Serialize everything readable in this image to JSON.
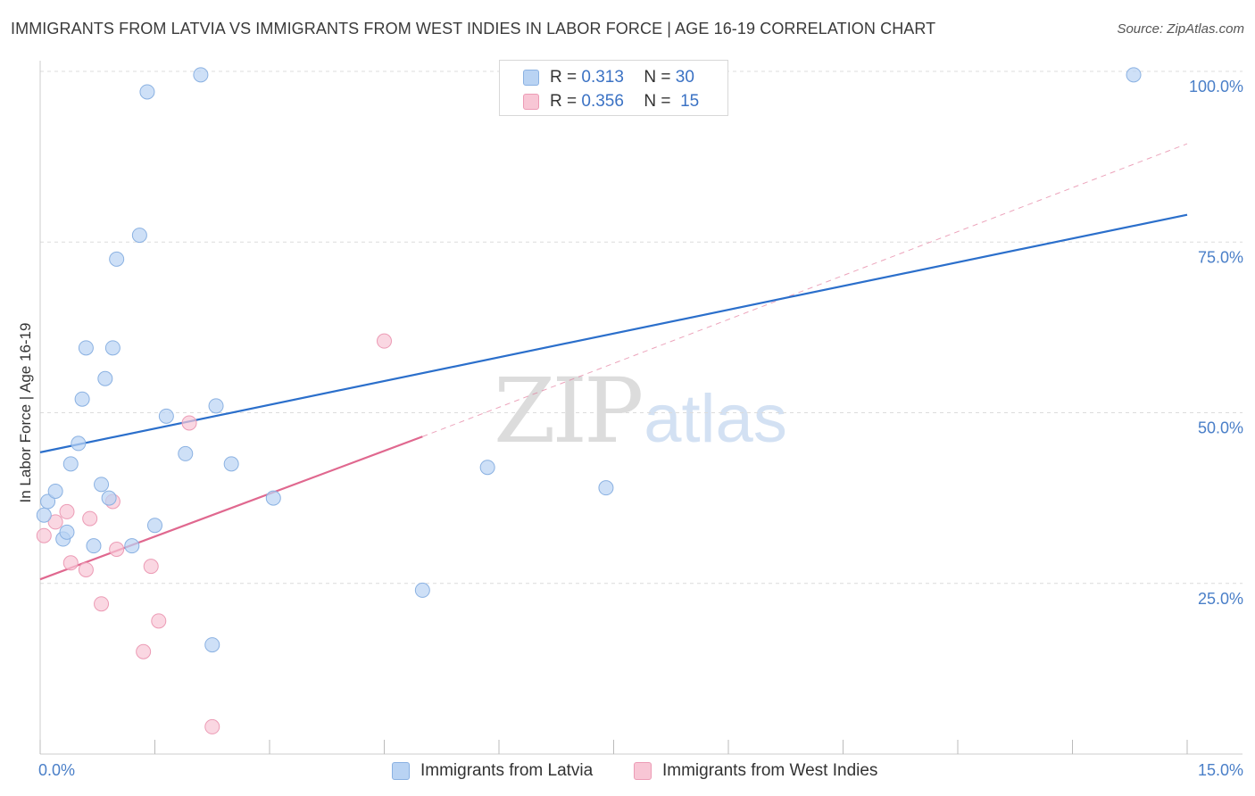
{
  "title": "IMMIGRANTS FROM LATVIA VS IMMIGRANTS FROM WEST INDIES IN LABOR FORCE | AGE 16-19 CORRELATION CHART",
  "source": "Source: ZipAtlas.com",
  "watermark": {
    "zip": "ZIP",
    "atlas": "atlas"
  },
  "legend": {
    "rows": [
      {
        "r_label": "R =",
        "r_value": "0.313",
        "n_label": "N =",
        "n_value": "30"
      },
      {
        "r_label": "R =",
        "r_value": "0.356",
        "n_label": "N =",
        "n_value": "15"
      }
    ]
  },
  "bottom_legend": {
    "latvia": "Immigrants from Latvia",
    "west_indies": "Immigrants from West Indies"
  },
  "colors": {
    "latvia_fill": "#b9d3f3",
    "latvia_stroke": "#8ab1e2",
    "latvia_line": "#2b6fcb",
    "west_fill": "#f8c6d5",
    "west_stroke": "#ec9bb5",
    "west_line": "#e0688f",
    "grid": "#dcdcdc",
    "tick_label": "#4a7fc8"
  },
  "chart_data": {
    "type": "scatter",
    "title": "IMMIGRANTS FROM LATVIA VS IMMIGRANTS FROM WEST INDIES IN LABOR FORCE | AGE 16-19 CORRELATION CHART",
    "xlabel": "",
    "ylabel": "In Labor Force | Age 16-19",
    "xlim": [
      0,
      15
    ],
    "ylim": [
      0,
      100
    ],
    "x_tick_labels": [
      "0.0%",
      "15.0%"
    ],
    "y_ticks": [
      25,
      50,
      75,
      100
    ],
    "y_tick_labels": [
      "25.0%",
      "50.0%",
      "75.0%",
      "100.0%"
    ],
    "grid": true,
    "legend_position": "top-center",
    "series": [
      {
        "name": "Immigrants from Latvia",
        "R": 0.313,
        "N": 30,
        "points": [
          {
            "x": 0.05,
            "y": 35.0
          },
          {
            "x": 0.1,
            "y": 37.0
          },
          {
            "x": 0.2,
            "y": 38.5
          },
          {
            "x": 0.3,
            "y": 31.5
          },
          {
            "x": 0.35,
            "y": 32.5
          },
          {
            "x": 0.4,
            "y": 42.5
          },
          {
            "x": 0.5,
            "y": 45.5
          },
          {
            "x": 0.55,
            "y": 52.0
          },
          {
            "x": 0.6,
            "y": 59.5
          },
          {
            "x": 0.7,
            "y": 30.5
          },
          {
            "x": 0.8,
            "y": 39.5
          },
          {
            "x": 0.85,
            "y": 55.0
          },
          {
            "x": 0.9,
            "y": 37.5
          },
          {
            "x": 0.95,
            "y": 59.5
          },
          {
            "x": 1.0,
            "y": 72.5
          },
          {
            "x": 1.2,
            "y": 30.5
          },
          {
            "x": 1.3,
            "y": 76.0
          },
          {
            "x": 1.4,
            "y": 97.0
          },
          {
            "x": 1.5,
            "y": 33.5
          },
          {
            "x": 1.65,
            "y": 49.5
          },
          {
            "x": 1.9,
            "y": 44.0
          },
          {
            "x": 2.1,
            "y": 99.5
          },
          {
            "x": 2.25,
            "y": 16.0
          },
          {
            "x": 2.3,
            "y": 51.0
          },
          {
            "x": 2.5,
            "y": 42.5
          },
          {
            "x": 3.05,
            "y": 37.5
          },
          {
            "x": 5.0,
            "y": 24.0
          },
          {
            "x": 5.85,
            "y": 42.0
          },
          {
            "x": 7.4,
            "y": 39.0
          },
          {
            "x": 14.3,
            "y": 99.5
          }
        ],
        "trend": {
          "x": [
            0,
            15
          ],
          "y": [
            44.2,
            79.0
          ]
        }
      },
      {
        "name": "Immigrants from West Indies",
        "R": 0.356,
        "N": 15,
        "points": [
          {
            "x": 0.05,
            "y": 32.0
          },
          {
            "x": 0.2,
            "y": 34.0
          },
          {
            "x": 0.35,
            "y": 35.5
          },
          {
            "x": 0.4,
            "y": 28.0
          },
          {
            "x": 0.6,
            "y": 27.0
          },
          {
            "x": 0.65,
            "y": 34.5
          },
          {
            "x": 0.8,
            "y": 22.0
          },
          {
            "x": 0.95,
            "y": 37.0
          },
          {
            "x": 1.0,
            "y": 30.0
          },
          {
            "x": 1.35,
            "y": 15.0
          },
          {
            "x": 1.45,
            "y": 27.5
          },
          {
            "x": 1.55,
            "y": 19.5
          },
          {
            "x": 1.95,
            "y": 48.5
          },
          {
            "x": 2.25,
            "y": 4.0
          },
          {
            "x": 4.5,
            "y": 60.5
          }
        ],
        "trend": {
          "x": [
            0,
            5.0
          ],
          "y": [
            25.6,
            46.5
          ]
        },
        "trend_extension": {
          "x": [
            5.0,
            15.0
          ],
          "y": [
            46.5,
            89.4
          ]
        }
      }
    ]
  }
}
